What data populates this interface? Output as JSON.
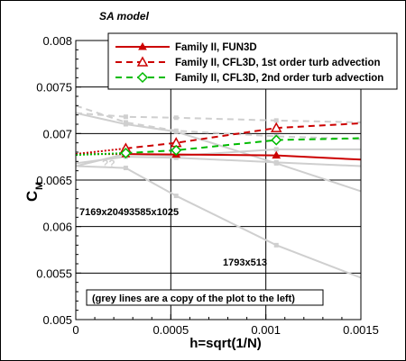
{
  "chart_data": {
    "type": "line",
    "title": "SA model",
    "xlabel": "h=sqrt(1/N)",
    "ylabel_main": "C",
    "ylabel_sub": "M",
    "xlim": [
      0,
      0.0015
    ],
    "ylim": [
      0.005,
      0.008
    ],
    "x_ticks": [
      "0",
      "0.0005",
      "0.001",
      "0.0015"
    ],
    "y_ticks": [
      "0.005",
      "0.0055",
      "0.006",
      "0.0065",
      "0.007",
      "0.0075",
      "0.008"
    ],
    "grid": true,
    "legend_position": "top-right",
    "series": [
      {
        "name": "Family II, FUN3D",
        "color": "#cc0000",
        "line": "solid",
        "marker": "filled-triangle",
        "x": [
          0.000263,
          0.000528,
          0.001055,
          0.0015
        ],
        "y": [
          0.00678,
          0.006775,
          0.006765,
          0.00672
        ],
        "markers_at": [
          0.000263,
          0.000528,
          0.001055
        ],
        "extrapolation": {
          "x": [
            0,
            0.000263
          ],
          "y": [
            0.00678,
            0.00678
          ]
        }
      },
      {
        "name": "Family II, CFL3D, 1st order turb advection",
        "color": "#cc0000",
        "line": "dashed",
        "marker": "open-triangle",
        "x": [
          0.000263,
          0.000528,
          0.001055,
          0.0015
        ],
        "y": [
          0.00684,
          0.0069,
          0.00706,
          0.00711
        ],
        "markers_at": [
          0.000263,
          0.000528,
          0.001055
        ],
        "extrapolation": {
          "x": [
            0,
            0.000263
          ],
          "y": [
            0.00678,
            0.00684
          ]
        }
      },
      {
        "name": "Family II, CFL3D, 2nd order turb advection",
        "color": "#00bb00",
        "line": "dashed",
        "marker": "open-diamond",
        "x": [
          0.000263,
          0.000528,
          0.001055,
          0.0015
        ],
        "y": [
          0.00679,
          0.00682,
          0.00693,
          0.00695
        ],
        "markers_at": [
          0.000263,
          0.000528,
          0.001055
        ],
        "extrapolation": {
          "x": [
            0,
            0.000263
          ],
          "y": [
            0.00677,
            0.00679
          ]
        }
      }
    ],
    "grey_series": [
      {
        "line": "dashed",
        "x": [
          0,
          0.000263,
          0.000528,
          0.001055,
          0.0015
        ],
        "y": [
          0.00722,
          0.00718,
          0.00717,
          0.00714,
          0.00712
        ]
      },
      {
        "line": "dashed",
        "x": [
          0,
          0.000263,
          0.000528,
          0.001055,
          0.0015
        ],
        "y": [
          0.0073,
          0.00712,
          0.00703,
          0.00697,
          0.00694
        ]
      },
      {
        "line": "solid",
        "x": [
          0,
          0.000263,
          0.000528,
          0.001055,
          0.0015
        ],
        "y": [
          0.00665,
          0.00678,
          0.00676,
          0.00683,
          0.00683
        ]
      },
      {
        "line": "solid",
        "x": [
          0,
          0.000263,
          0.000528,
          0.001055,
          0.0015
        ],
        "y": [
          0.00668,
          0.00675,
          0.00674,
          0.00669,
          0.00665
        ]
      },
      {
        "line": "solid",
        "x": [
          0,
          0.000263,
          0.000528,
          0.001055,
          0.0015
        ],
        "y": [
          0.00722,
          0.0071,
          0.00702,
          0.00668,
          0.00638
        ]
      },
      {
        "line": "solid",
        "x": [
          0,
          0.000263,
          0.000528,
          0.001055,
          0.0015
        ],
        "y": [
          0.00665,
          0.00663,
          0.00633,
          0.0058,
          0.00545
        ]
      }
    ],
    "grey_markers_x": [
      0.000263,
      0.000528,
      0.001055
    ],
    "annotations": {
      "grid_labels": [
        "7169x2049",
        "3585x1025",
        "1793x513"
      ],
      "question": "??",
      "note": "(grey lines are a copy of the plot to the left)"
    }
  }
}
